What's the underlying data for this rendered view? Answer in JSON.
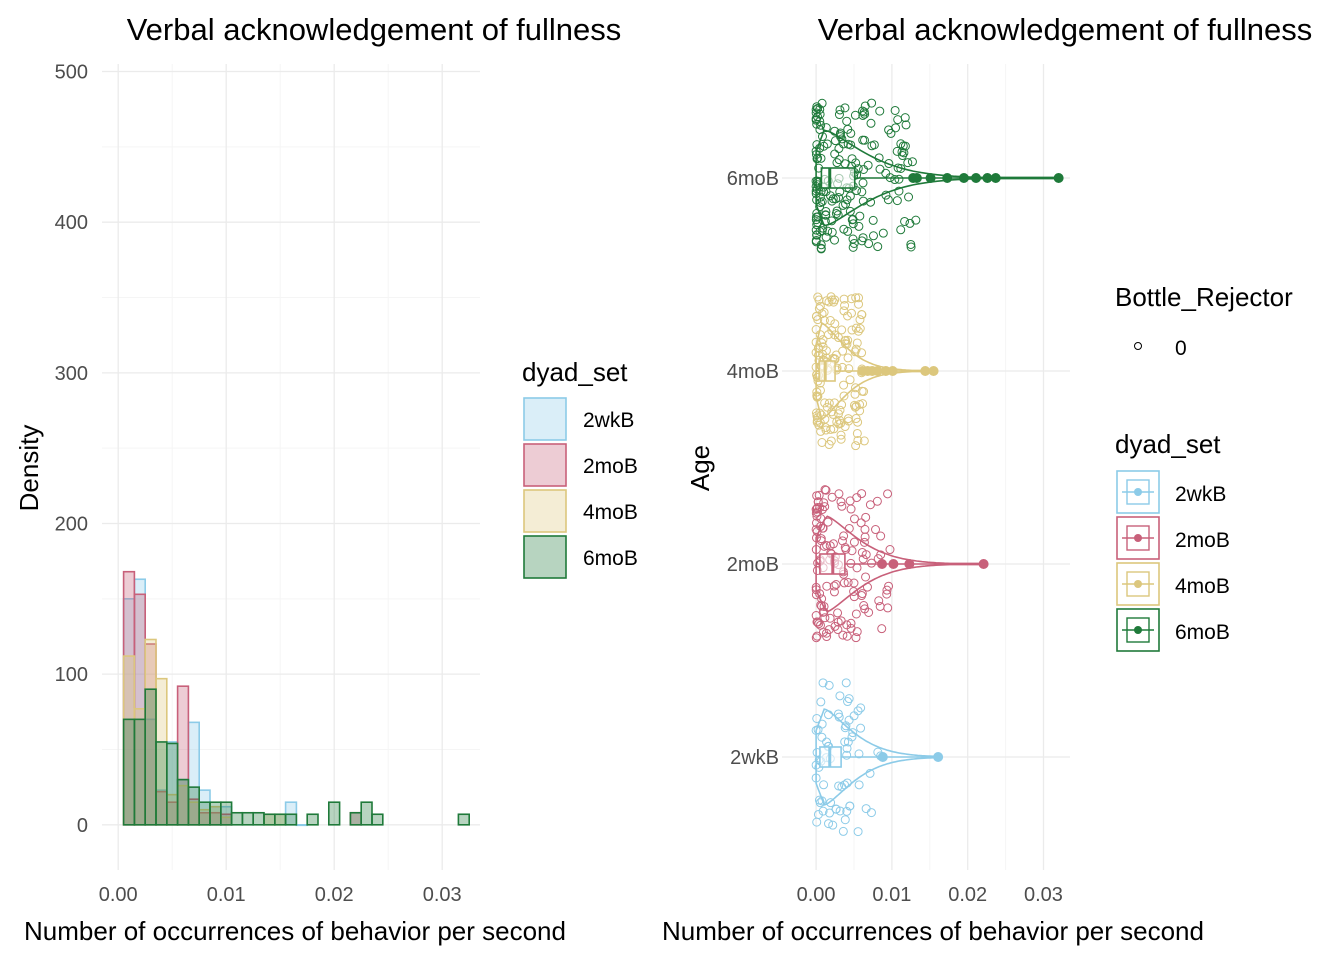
{
  "colors": {
    "2wkB": "#8ccbe8",
    "2moB": "#c8607a",
    "4moB": "#dcc77d",
    "6moB": "#1f7a3a",
    "grid_major": "#ebebeb",
    "grid_minor": "#f5f5f5"
  },
  "chart_data": [
    {
      "type": "histogram",
      "title": "Verbal acknowledgement of fullness",
      "xlabel": "Number of occurrences of behavior per second",
      "ylabel": "Density",
      "xlim": [
        -0.0015,
        0.0335
      ],
      "ylim": [
        -30,
        505
      ],
      "x_ticks": [
        0.0,
        0.01,
        0.02,
        0.03
      ],
      "x_tick_labels": [
        "0.00",
        "0.01",
        "0.02",
        "0.03"
      ],
      "y_ticks": [
        0,
        100,
        200,
        300,
        400,
        500
      ],
      "y_tick_labels": [
        "0",
        "100",
        "200",
        "300",
        "400",
        "500"
      ],
      "grid": true,
      "legend": {
        "title": "dyad_set",
        "position": "right",
        "entries": [
          "2wkB",
          "2moB",
          "4moB",
          "6moB"
        ]
      },
      "bin_width": 0.001,
      "bin_start": 0.0005,
      "series": [
        {
          "name": "2wkB",
          "bins": [
            [
              0.0005,
              150
            ],
            [
              0.0015,
              163
            ],
            [
              0.0025,
              70
            ],
            [
              0.0035,
              23
            ],
            [
              0.0045,
              55
            ],
            [
              0.0055,
              30
            ],
            [
              0.0065,
              68
            ],
            [
              0.0075,
              23
            ],
            [
              0.0085,
              12
            ],
            [
              0.0095,
              12
            ],
            [
              0.0155,
              15
            ],
            [
              0.0165,
              0
            ]
          ]
        },
        {
          "name": "2moB",
          "bins": [
            [
              0.0005,
              168
            ],
            [
              0.0015,
              153
            ],
            [
              0.0025,
              120
            ],
            [
              0.0035,
              22
            ],
            [
              0.0045,
              15
            ],
            [
              0.0055,
              92
            ],
            [
              0.0065,
              17
            ],
            [
              0.0075,
              8
            ],
            [
              0.0085,
              8
            ],
            [
              0.0095,
              7
            ],
            [
              0.0215,
              8
            ]
          ]
        },
        {
          "name": "4moB",
          "bins": [
            [
              0.0005,
              112
            ],
            [
              0.0015,
              77
            ],
            [
              0.0025,
              123
            ],
            [
              0.0035,
              97
            ],
            [
              0.0045,
              20
            ],
            [
              0.0055,
              26
            ],
            [
              0.0065,
              15
            ],
            [
              0.0075,
              10
            ],
            [
              0.0085,
              12
            ],
            [
              0.0095,
              5
            ],
            [
              0.0135,
              7
            ],
            [
              0.0145,
              7
            ]
          ]
        },
        {
          "name": "6moB",
          "bins": [
            [
              0.0005,
              70
            ],
            [
              0.0015,
              70
            ],
            [
              0.0025,
              90
            ],
            [
              0.0035,
              55
            ],
            [
              0.0045,
              54
            ],
            [
              0.0055,
              30
            ],
            [
              0.0065,
              25
            ],
            [
              0.0075,
              15
            ],
            [
              0.0085,
              15
            ],
            [
              0.0095,
              15
            ],
            [
              0.0105,
              8
            ],
            [
              0.0115,
              8
            ],
            [
              0.0125,
              8
            ],
            [
              0.0135,
              7
            ],
            [
              0.0145,
              7
            ],
            [
              0.0155,
              7
            ],
            [
              0.0175,
              7
            ],
            [
              0.0195,
              15
            ],
            [
              0.0215,
              8
            ],
            [
              0.0225,
              15
            ],
            [
              0.0235,
              7
            ],
            [
              0.0315,
              7
            ]
          ]
        }
      ]
    },
    {
      "type": "violin-box-jitter",
      "title": "Verbal acknowledgement of fullness",
      "xlabel": "Number of occurrences of behavior per second",
      "ylabel": "Age",
      "xlim": [
        -0.0045,
        0.0335
      ],
      "x_ticks": [
        0.0,
        0.01,
        0.02,
        0.03
      ],
      "x_tick_labels": [
        "0.00",
        "0.01",
        "0.02",
        "0.03"
      ],
      "categories": [
        "2wkB",
        "2moB",
        "4moB",
        "6moB"
      ],
      "grid": true,
      "legends": [
        {
          "title": "Bottle_Rejector",
          "entries": [
            "0"
          ]
        },
        {
          "title": "dyad_set",
          "entries": [
            "2wkB",
            "2moB",
            "4moB",
            "6moB"
          ]
        }
      ],
      "series": [
        {
          "name": "2wkB",
          "n": 70,
          "box": {
            "q1": 0.0005,
            "median": 0.0018,
            "q3": 0.0033,
            "whisker_low": 0.0,
            "whisker_high": 0.0058
          },
          "max": 0.0161,
          "outliers": [
            0.0088,
            0.0161
          ]
        },
        {
          "name": "2moB",
          "n": 140,
          "box": {
            "q1": 0.0005,
            "median": 0.0022,
            "q3": 0.0038,
            "whisker_low": 0.0,
            "whisker_high": 0.0068
          },
          "max": 0.0221,
          "outliers": [
            0.0087,
            0.0102,
            0.0123,
            0.0221
          ]
        },
        {
          "name": "4moB",
          "n": 150,
          "box": {
            "q1": 0.0004,
            "median": 0.0012,
            "q3": 0.0025,
            "whisker_low": 0.0,
            "whisker_high": 0.005
          },
          "max": 0.0155,
          "outliers": [
            0.0061,
            0.0068,
            0.0074,
            0.0081,
            0.0092,
            0.0101,
            0.0144,
            0.0155
          ]
        },
        {
          "name": "6moB",
          "n": 190,
          "box": {
            "q1": 0.0007,
            "median": 0.0018,
            "q3": 0.0051,
            "whisker_low": 0.0,
            "whisker_high": 0.0095
          },
          "max": 0.032,
          "outliers": [
            0.0128,
            0.0133,
            0.0151,
            0.0173,
            0.0195,
            0.0211,
            0.0226,
            0.0237,
            0.032
          ]
        }
      ]
    }
  ]
}
